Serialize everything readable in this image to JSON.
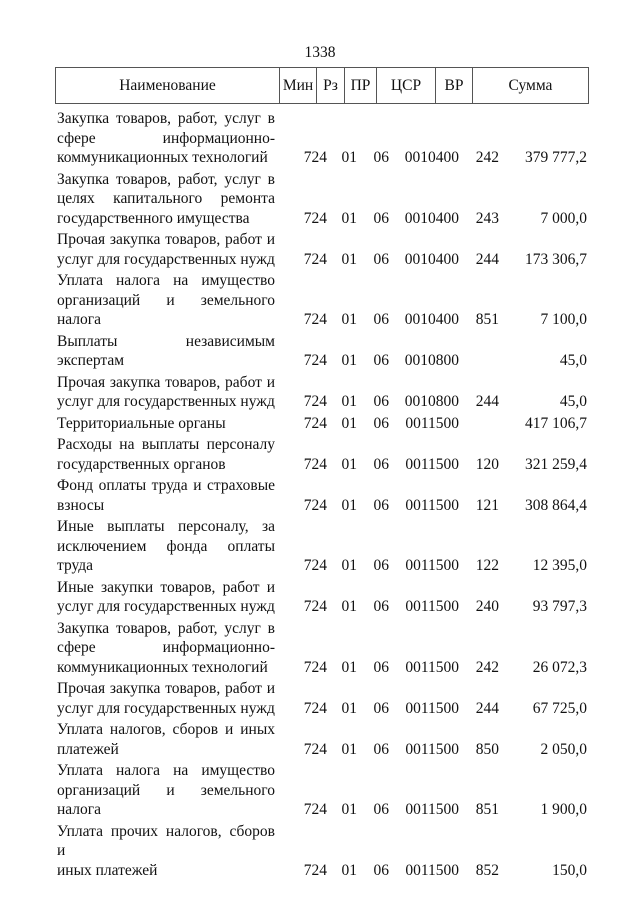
{
  "page_number": "1338",
  "headers": [
    "Наименование",
    "Мин",
    "Рз",
    "ПР",
    "ЦСР",
    "ВР",
    "Сумма"
  ],
  "rows": [
    {
      "name": [
        "Закупка товаров, работ, услуг в",
        "сфере информационно-",
        "коммуникационных технологий"
      ],
      "min": "724",
      "rz": "01",
      "pr": "06",
      "csr": "0010400",
      "vr": "242",
      "sum": "379 777,2"
    },
    {
      "name": [
        "Закупка товаров, работ, услуг в",
        "целях капитального ремонта",
        "государственного имущества"
      ],
      "min": "724",
      "rz": "01",
      "pr": "06",
      "csr": "0010400",
      "vr": "243",
      "sum": "7 000,0"
    },
    {
      "name": [
        "Прочая закупка товаров, работ и",
        "услуг для государственных нужд"
      ],
      "min": "724",
      "rz": "01",
      "pr": "06",
      "csr": "0010400",
      "vr": "244",
      "sum": "173 306,7"
    },
    {
      "name": [
        "Уплата налога на имущество",
        "организаций и земельного налога"
      ],
      "min": "724",
      "rz": "01",
      "pr": "06",
      "csr": "0010400",
      "vr": "851",
      "sum": "7 100,0"
    },
    {
      "name": [
        "Выплаты независимым",
        "экспертам"
      ],
      "min": "724",
      "rz": "01",
      "pr": "06",
      "csr": "0010800",
      "vr": "",
      "sum": "45,0"
    },
    {
      "name": [
        "Прочая закупка товаров, работ и",
        "услуг для государственных нужд"
      ],
      "min": "724",
      "rz": "01",
      "pr": "06",
      "csr": "0010800",
      "vr": "244",
      "sum": "45,0"
    },
    {
      "name": [
        "Территориальные органы"
      ],
      "min": "724",
      "rz": "01",
      "pr": "06",
      "csr": "0011500",
      "vr": "",
      "sum": "417 106,7"
    },
    {
      "name": [
        "Расходы на выплаты персоналу",
        "государственных органов"
      ],
      "min": "724",
      "rz": "01",
      "pr": "06",
      "csr": "0011500",
      "vr": "120",
      "sum": "321 259,4"
    },
    {
      "name": [
        "Фонд оплаты труда и страховые",
        "взносы"
      ],
      "min": "724",
      "rz": "01",
      "pr": "06",
      "csr": "0011500",
      "vr": "121",
      "sum": "308 864,4"
    },
    {
      "name": [
        "Иные выплаты персоналу, за",
        "исключением фонда оплаты",
        "труда"
      ],
      "min": "724",
      "rz": "01",
      "pr": "06",
      "csr": "0011500",
      "vr": "122",
      "sum": "12 395,0"
    },
    {
      "name": [
        "Иные закупки товаров, работ и",
        "услуг для государственных нужд"
      ],
      "min": "724",
      "rz": "01",
      "pr": "06",
      "csr": "0011500",
      "vr": "240",
      "sum": "93 797,3"
    },
    {
      "name": [
        "Закупка товаров, работ, услуг в",
        "сфере информационно-",
        "коммуникационных технологий"
      ],
      "min": "724",
      "rz": "01",
      "pr": "06",
      "csr": "0011500",
      "vr": "242",
      "sum": "26 072,3"
    },
    {
      "name": [
        "Прочая закупка товаров, работ и",
        "услуг для государственных нужд"
      ],
      "min": "724",
      "rz": "01",
      "pr": "06",
      "csr": "0011500",
      "vr": "244",
      "sum": "67 725,0"
    },
    {
      "name": [
        "Уплата налогов, сборов и иных",
        "платежей"
      ],
      "min": "724",
      "rz": "01",
      "pr": "06",
      "csr": "0011500",
      "vr": "850",
      "sum": "2 050,0"
    },
    {
      "name": [
        "Уплата налога на имущество",
        "организаций и земельного налога"
      ],
      "min": "724",
      "rz": "01",
      "pr": "06",
      "csr": "0011500",
      "vr": "851",
      "sum": "1 900,0"
    },
    {
      "name": [
        "Уплата прочих налогов, сборов и",
        "иных платежей"
      ],
      "min": "724",
      "rz": "01",
      "pr": "06",
      "csr": "0011500",
      "vr": "852",
      "sum": "150,0"
    }
  ]
}
